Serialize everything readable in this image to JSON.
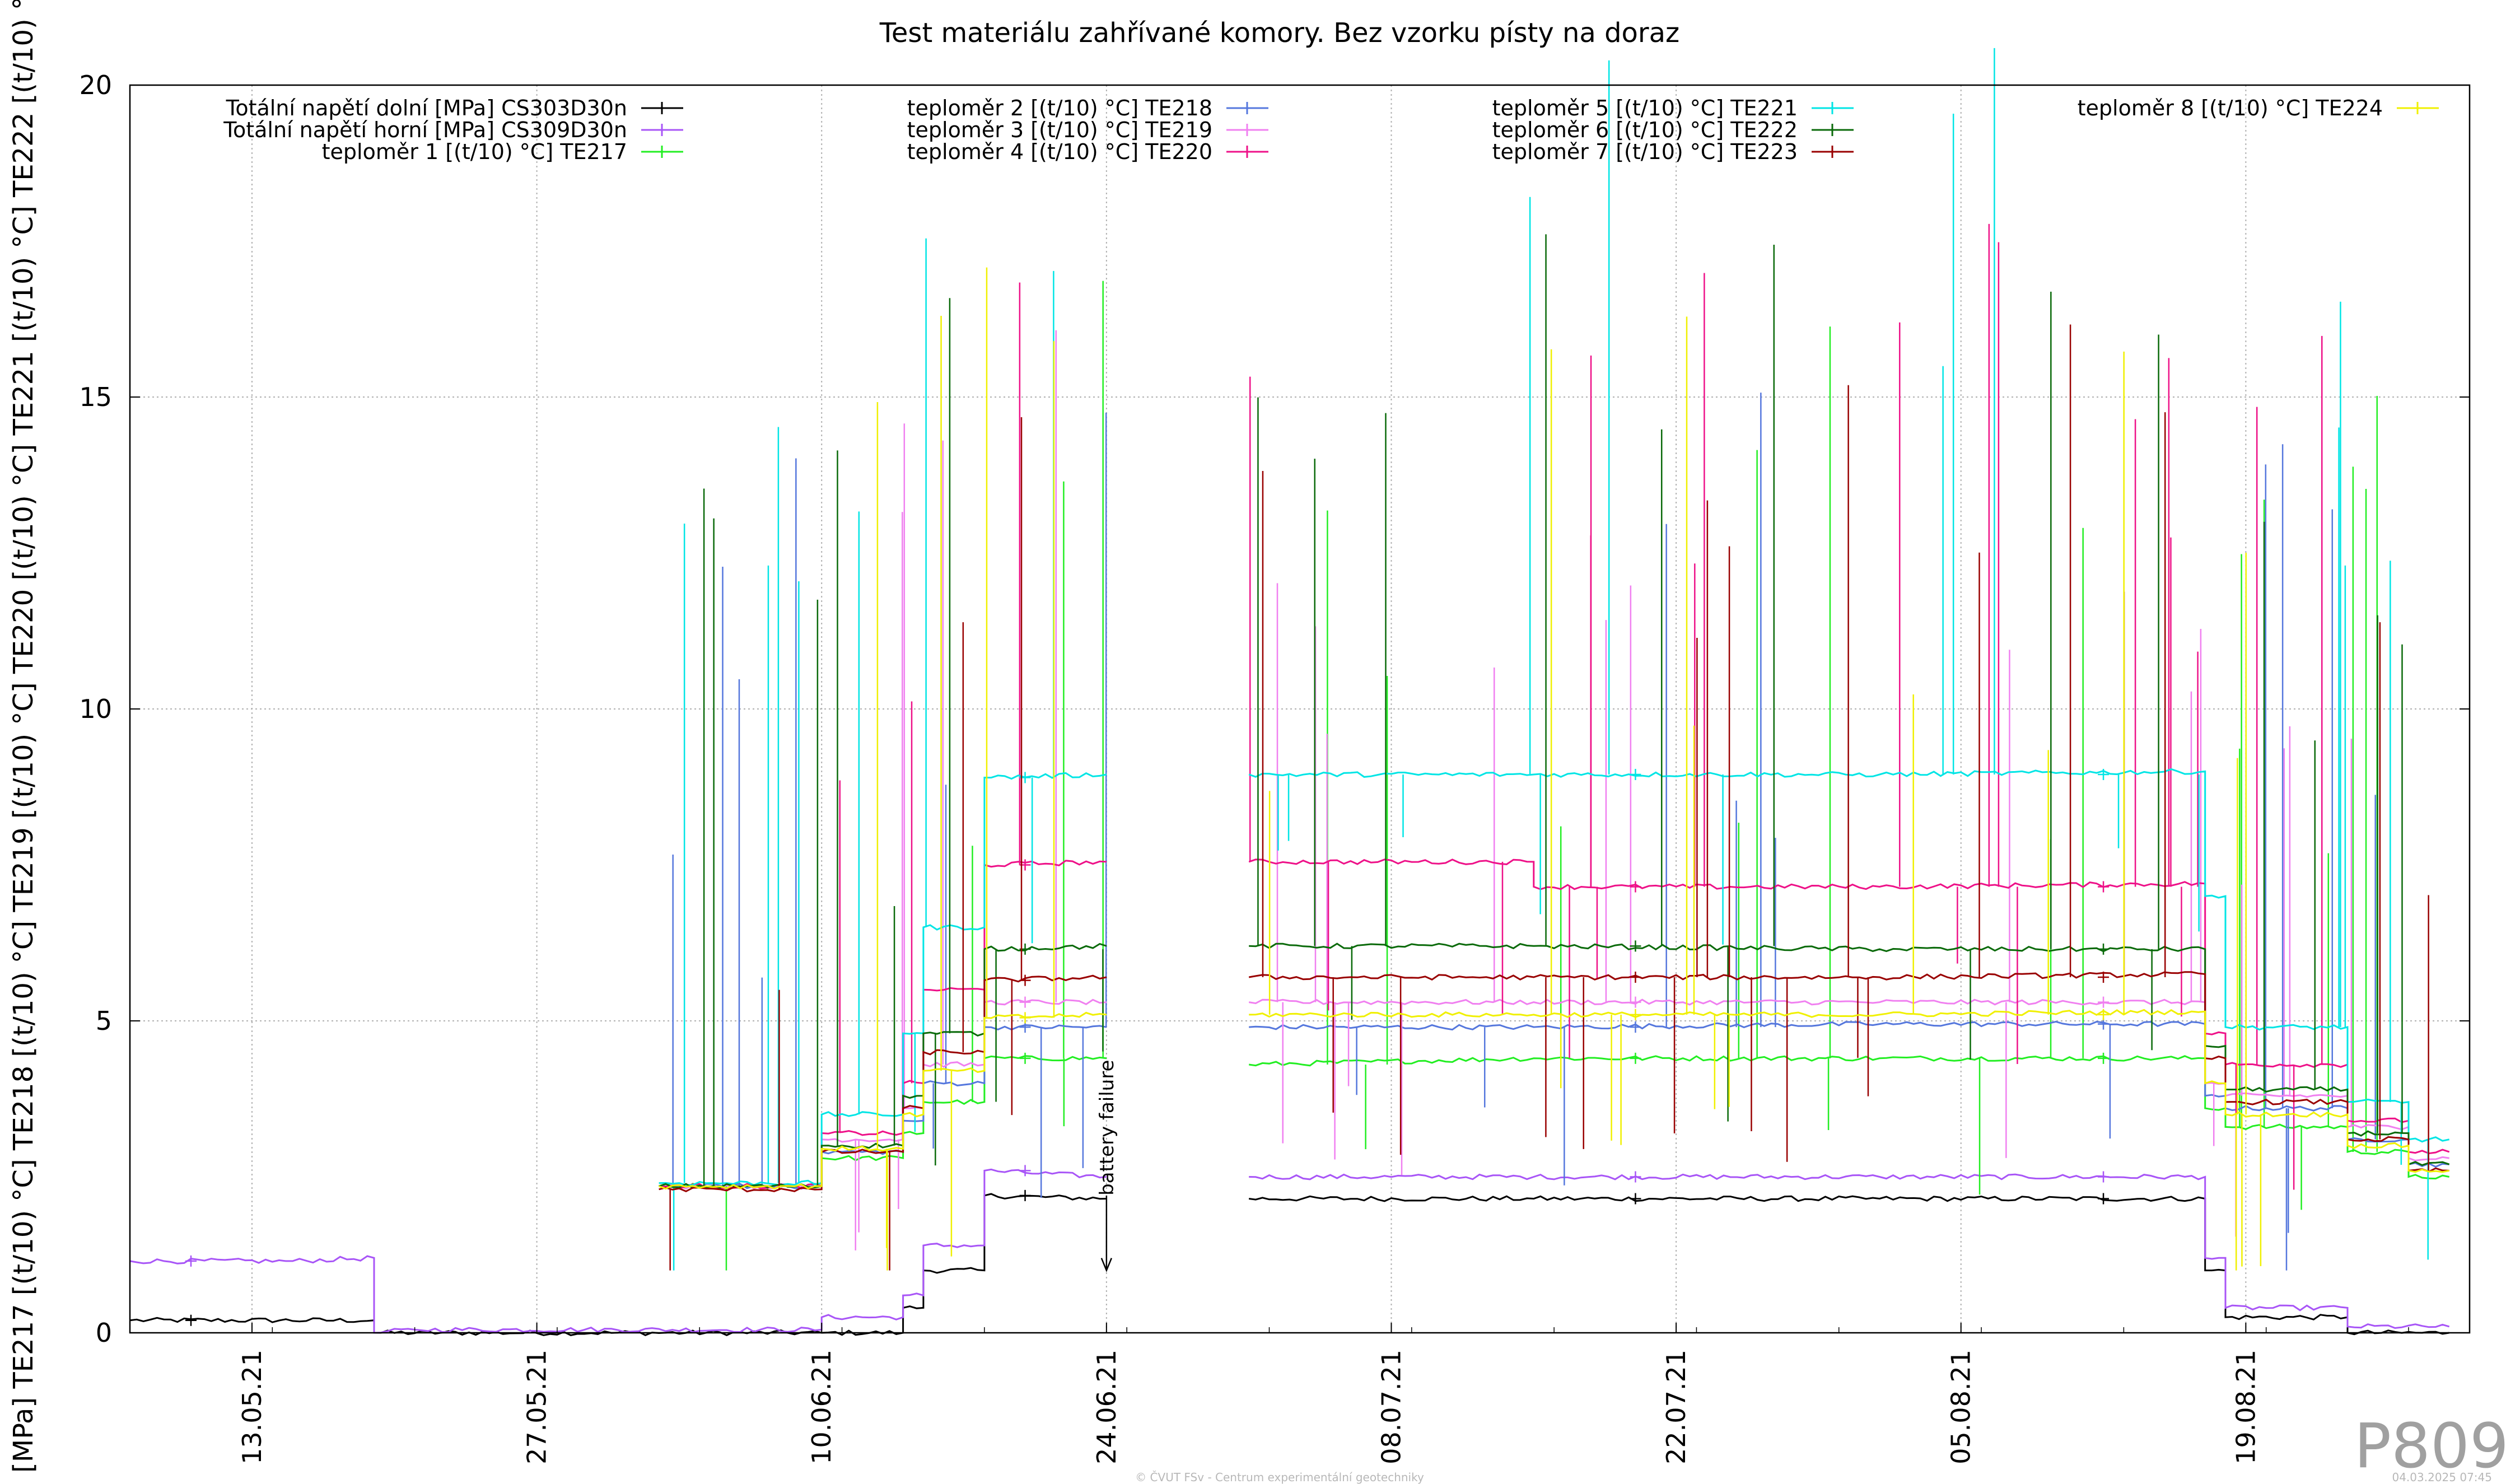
{
  "chart_data": {
    "type": "line",
    "title": "Test materiálu zahřívané komory. Bez vzorku písty na doraz",
    "ylabel": "[MPa] TE217 [(t/10) °C] TE218 [(t/10) °C] TE219 [(t/10) °C] TE220 [(t/10) °C] TE221 [(t/10) °C] TE222 [(t/10) °C",
    "xlabel": "",
    "ylim": [
      0,
      20
    ],
    "xlim": [
      "2021-05-07",
      "2021-08-30"
    ],
    "yticks": [
      "0",
      "5",
      "10",
      "15",
      "20"
    ],
    "xticks": [
      {
        "date": "2021-05-13",
        "label": "13.05.21"
      },
      {
        "date": "2021-05-27",
        "label": "27.05.21"
      },
      {
        "date": "2021-06-10",
        "label": "10.06.21"
      },
      {
        "date": "2021-06-24",
        "label": "24.06.21"
      },
      {
        "date": "2021-07-08",
        "label": "08.07.21"
      },
      {
        "date": "2021-07-22",
        "label": "22.07.21"
      },
      {
        "date": "2021-08-05",
        "label": "05.08.21"
      },
      {
        "date": "2021-08-19",
        "label": "19.08.21"
      }
    ],
    "grid": true,
    "legend_position": "top",
    "annotation": {
      "text": "battery failure",
      "date": "2021-06-24",
      "y": 1.0
    },
    "gap": [
      "2021-06-24",
      "2021-07-01"
    ],
    "series": [
      {
        "name": "Totální napětí dolní [MPa] CS303D30n",
        "color": "#000000",
        "points": [
          [
            "2021-05-07",
            0.2
          ],
          [
            "2021-05-19",
            0.2
          ],
          [
            "2021-05-19",
            0.0
          ],
          [
            "2021-06-10",
            0.0
          ],
          [
            "2021-06-14",
            0.0
          ],
          [
            "2021-06-14",
            0.4
          ],
          [
            "2021-06-15",
            0.4
          ],
          [
            "2021-06-15",
            1.0
          ],
          [
            "2021-06-18",
            1.0
          ],
          [
            "2021-06-18",
            2.2
          ],
          [
            "2021-06-24",
            2.15
          ],
          [
            "2021-07-01",
            2.15
          ],
          [
            "2021-07-15",
            2.15
          ],
          [
            "2021-08-01",
            2.15
          ],
          [
            "2021-08-17",
            2.15
          ],
          [
            "2021-08-17",
            1.0
          ],
          [
            "2021-08-18",
            1.0
          ],
          [
            "2021-08-18",
            0.25
          ],
          [
            "2021-08-24",
            0.25
          ],
          [
            "2021-08-24",
            0.0
          ],
          [
            "2021-08-29",
            0.0
          ]
        ]
      },
      {
        "name": "Totální napětí horní [MPa] CS309D30n",
        "color": "#a855f7",
        "points": [
          [
            "2021-05-07",
            1.15
          ],
          [
            "2021-05-15",
            1.15
          ],
          [
            "2021-05-19",
            1.2
          ],
          [
            "2021-05-19",
            0.0
          ],
          [
            "2021-05-21",
            0.05
          ],
          [
            "2021-06-10",
            0.05
          ],
          [
            "2021-06-10",
            0.25
          ],
          [
            "2021-06-14",
            0.25
          ],
          [
            "2021-06-14",
            0.6
          ],
          [
            "2021-06-15",
            0.6
          ],
          [
            "2021-06-15",
            1.4
          ],
          [
            "2021-06-18",
            1.4
          ],
          [
            "2021-06-18",
            2.6
          ],
          [
            "2021-06-24",
            2.5
          ],
          [
            "2021-07-01",
            2.5
          ],
          [
            "2021-07-15",
            2.5
          ],
          [
            "2021-08-01",
            2.5
          ],
          [
            "2021-08-17",
            2.5
          ],
          [
            "2021-08-17",
            1.2
          ],
          [
            "2021-08-18",
            1.2
          ],
          [
            "2021-08-18",
            0.4
          ],
          [
            "2021-08-24",
            0.4
          ],
          [
            "2021-08-24",
            0.1
          ],
          [
            "2021-08-29",
            0.1
          ]
        ]
      },
      {
        "name": "teploměr 1 [(t/10) °C] TE217",
        "color": "#22ee22",
        "points": [
          [
            "2021-06-02",
            2.35
          ],
          [
            "2021-06-10",
            2.35
          ],
          [
            "2021-06-10",
            2.8
          ],
          [
            "2021-06-14",
            2.8
          ],
          [
            "2021-06-14",
            3.2
          ],
          [
            "2021-06-15",
            3.2
          ],
          [
            "2021-06-15",
            3.7
          ],
          [
            "2021-06-18",
            3.7
          ],
          [
            "2021-06-18",
            4.4
          ],
          [
            "2021-06-24",
            4.4
          ],
          [
            "2021-07-01",
            4.3
          ],
          [
            "2021-07-15",
            4.4
          ],
          [
            "2021-08-01",
            4.4
          ],
          [
            "2021-08-17",
            4.4
          ],
          [
            "2021-08-17",
            3.6
          ],
          [
            "2021-08-18",
            3.6
          ],
          [
            "2021-08-18",
            3.3
          ],
          [
            "2021-08-24",
            3.3
          ],
          [
            "2021-08-24",
            2.9
          ],
          [
            "2021-08-27",
            2.9
          ],
          [
            "2021-08-27",
            2.5
          ],
          [
            "2021-08-29",
            2.5
          ]
        ]
      },
      {
        "name": "teploměr 2 [(t/10) °C] TE218",
        "color": "#5577dd",
        "points": [
          [
            "2021-06-02",
            2.35
          ],
          [
            "2021-06-10",
            2.35
          ],
          [
            "2021-06-10",
            2.9
          ],
          [
            "2021-06-14",
            2.9
          ],
          [
            "2021-06-14",
            3.4
          ],
          [
            "2021-06-15",
            3.4
          ],
          [
            "2021-06-15",
            4.0
          ],
          [
            "2021-06-18",
            4.0
          ],
          [
            "2021-06-18",
            4.9
          ],
          [
            "2021-06-24",
            4.9
          ],
          [
            "2021-07-01",
            4.9
          ],
          [
            "2021-07-15",
            4.9
          ],
          [
            "2021-08-01",
            4.95
          ],
          [
            "2021-08-17",
            4.95
          ],
          [
            "2021-08-17",
            3.8
          ],
          [
            "2021-08-18",
            3.8
          ],
          [
            "2021-08-18",
            3.6
          ],
          [
            "2021-08-24",
            3.6
          ],
          [
            "2021-08-24",
            3.1
          ],
          [
            "2021-08-27",
            3.1
          ],
          [
            "2021-08-27",
            2.7
          ],
          [
            "2021-08-29",
            2.7
          ]
        ]
      },
      {
        "name": "teploměr 3 [(t/10) °C] TE219",
        "color": "#f080f0",
        "points": [
          [
            "2021-06-02",
            2.35
          ],
          [
            "2021-06-10",
            2.35
          ],
          [
            "2021-06-10",
            3.1
          ],
          [
            "2021-06-14",
            3.1
          ],
          [
            "2021-06-14",
            3.6
          ],
          [
            "2021-06-15",
            3.6
          ],
          [
            "2021-06-15",
            4.3
          ],
          [
            "2021-06-18",
            4.3
          ],
          [
            "2021-06-18",
            5.3
          ],
          [
            "2021-06-24",
            5.3
          ],
          [
            "2021-07-01",
            5.3
          ],
          [
            "2021-07-15",
            5.3
          ],
          [
            "2021-08-01",
            5.3
          ],
          [
            "2021-08-17",
            5.3
          ],
          [
            "2021-08-17",
            4.0
          ],
          [
            "2021-08-18",
            4.0
          ],
          [
            "2021-08-18",
            3.8
          ],
          [
            "2021-08-24",
            3.8
          ],
          [
            "2021-08-24",
            3.3
          ],
          [
            "2021-08-27",
            3.3
          ],
          [
            "2021-08-27",
            2.8
          ],
          [
            "2021-08-29",
            2.8
          ]
        ]
      },
      {
        "name": "teploměr 4 [(t/10) °C] TE220",
        "color": "#ee1188",
        "points": [
          [
            "2021-06-02",
            2.35
          ],
          [
            "2021-06-10",
            2.35
          ],
          [
            "2021-06-10",
            3.2
          ],
          [
            "2021-06-14",
            3.2
          ],
          [
            "2021-06-14",
            4.0
          ],
          [
            "2021-06-15",
            4.0
          ],
          [
            "2021-06-15",
            5.5
          ],
          [
            "2021-06-18",
            5.5
          ],
          [
            "2021-06-18",
            7.5
          ],
          [
            "2021-06-24",
            7.55
          ],
          [
            "2021-07-01",
            7.55
          ],
          [
            "2021-07-15",
            7.55
          ],
          [
            "2021-07-15",
            7.15
          ],
          [
            "2021-08-01",
            7.15
          ],
          [
            "2021-08-17",
            7.2
          ],
          [
            "2021-08-17",
            4.8
          ],
          [
            "2021-08-18",
            4.8
          ],
          [
            "2021-08-18",
            4.3
          ],
          [
            "2021-08-24",
            4.3
          ],
          [
            "2021-08-24",
            3.4
          ],
          [
            "2021-08-27",
            3.4
          ],
          [
            "2021-08-27",
            2.9
          ],
          [
            "2021-08-29",
            2.9
          ]
        ]
      },
      {
        "name": "teploměr 5 [(t/10) °C] TE221",
        "color": "#00e5e5",
        "points": [
          [
            "2021-06-02",
            2.4
          ],
          [
            "2021-06-10",
            2.4
          ],
          [
            "2021-06-10",
            3.5
          ],
          [
            "2021-06-14",
            3.5
          ],
          [
            "2021-06-14",
            4.8
          ],
          [
            "2021-06-15",
            4.8
          ],
          [
            "2021-06-15",
            6.5
          ],
          [
            "2021-06-18",
            6.5
          ],
          [
            "2021-06-18",
            8.9
          ],
          [
            "2021-06-24",
            8.95
          ],
          [
            "2021-07-01",
            8.95
          ],
          [
            "2021-07-15",
            8.95
          ],
          [
            "2021-08-01",
            8.95
          ],
          [
            "2021-08-17",
            9.0
          ],
          [
            "2021-08-17",
            7.0
          ],
          [
            "2021-08-18",
            7.0
          ],
          [
            "2021-08-18",
            4.9
          ],
          [
            "2021-08-24",
            4.9
          ],
          [
            "2021-08-24",
            3.7
          ],
          [
            "2021-08-27",
            3.7
          ],
          [
            "2021-08-27",
            3.1
          ],
          [
            "2021-08-29",
            3.1
          ]
        ]
      },
      {
        "name": "teploměr 6 [(t/10) °C] TE222",
        "color": "#0a6a0a",
        "points": [
          [
            "2021-06-02",
            2.35
          ],
          [
            "2021-06-10",
            2.35
          ],
          [
            "2021-06-10",
            3.0
          ],
          [
            "2021-06-14",
            3.0
          ],
          [
            "2021-06-14",
            3.8
          ],
          [
            "2021-06-15",
            3.8
          ],
          [
            "2021-06-15",
            4.8
          ],
          [
            "2021-06-18",
            4.8
          ],
          [
            "2021-06-18",
            6.15
          ],
          [
            "2021-06-24",
            6.2
          ],
          [
            "2021-07-01",
            6.2
          ],
          [
            "2021-07-15",
            6.2
          ],
          [
            "2021-08-01",
            6.15
          ],
          [
            "2021-08-17",
            6.15
          ],
          [
            "2021-08-17",
            4.6
          ],
          [
            "2021-08-18",
            4.6
          ],
          [
            "2021-08-18",
            3.9
          ],
          [
            "2021-08-24",
            3.9
          ],
          [
            "2021-08-24",
            3.2
          ],
          [
            "2021-08-27",
            3.2
          ],
          [
            "2021-08-27",
            2.7
          ],
          [
            "2021-08-29",
            2.7
          ]
        ]
      },
      {
        "name": "teploměr 7 [(t/10) °C] TE223",
        "color": "#990000",
        "points": [
          [
            "2021-06-02",
            2.3
          ],
          [
            "2021-06-10",
            2.3
          ],
          [
            "2021-06-10",
            2.9
          ],
          [
            "2021-06-14",
            2.9
          ],
          [
            "2021-06-14",
            3.6
          ],
          [
            "2021-06-15",
            3.6
          ],
          [
            "2021-06-15",
            4.5
          ],
          [
            "2021-06-18",
            4.5
          ],
          [
            "2021-06-18",
            5.65
          ],
          [
            "2021-06-24",
            5.7
          ],
          [
            "2021-07-01",
            5.7
          ],
          [
            "2021-07-15",
            5.7
          ],
          [
            "2021-08-01",
            5.7
          ],
          [
            "2021-08-17",
            5.75
          ],
          [
            "2021-08-17",
            4.4
          ],
          [
            "2021-08-18",
            4.4
          ],
          [
            "2021-08-18",
            3.7
          ],
          [
            "2021-08-24",
            3.7
          ],
          [
            "2021-08-24",
            3.1
          ],
          [
            "2021-08-27",
            3.1
          ],
          [
            "2021-08-27",
            2.6
          ],
          [
            "2021-08-29",
            2.6
          ]
        ]
      },
      {
        "name": "teploměr 8 [(t/10) °C] TE224",
        "color": "#f0f000",
        "points": [
          [
            "2021-06-02",
            2.35
          ],
          [
            "2021-06-10",
            2.35
          ],
          [
            "2021-06-10",
            2.95
          ],
          [
            "2021-06-14",
            2.95
          ],
          [
            "2021-06-14",
            3.5
          ],
          [
            "2021-06-15",
            3.5
          ],
          [
            "2021-06-15",
            4.2
          ],
          [
            "2021-06-18",
            4.2
          ],
          [
            "2021-06-18",
            5.05
          ],
          [
            "2021-06-24",
            5.1
          ],
          [
            "2021-07-01",
            5.1
          ],
          [
            "2021-07-15",
            5.1
          ],
          [
            "2021-08-01",
            5.1
          ],
          [
            "2021-08-17",
            5.15
          ],
          [
            "2021-08-17",
            4.0
          ],
          [
            "2021-08-18",
            4.0
          ],
          [
            "2021-08-18",
            3.5
          ],
          [
            "2021-08-24",
            3.5
          ],
          [
            "2021-08-24",
            3.0
          ],
          [
            "2021-08-27",
            3.0
          ],
          [
            "2021-08-27",
            2.6
          ],
          [
            "2021-08-29",
            2.6
          ]
        ]
      }
    ]
  },
  "watermark": "P809",
  "footer_center": "© ČVUT FSv - Centrum experimentální geotechniky",
  "footer_right": "04.03.2025 07:45"
}
